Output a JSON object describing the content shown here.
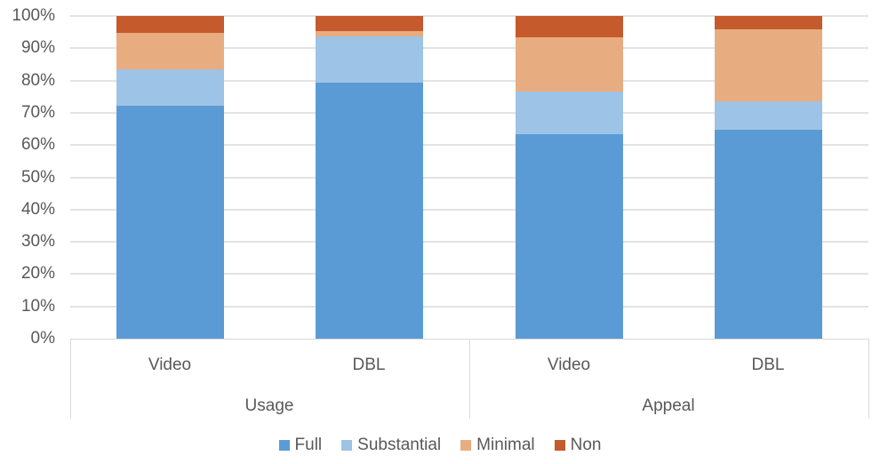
{
  "chart_data": {
    "type": "bar",
    "stacked": true,
    "percent_stacked": true,
    "title": "",
    "xlabel": "",
    "ylabel": "",
    "ylim": [
      0,
      100
    ],
    "y_ticks": [
      "0%",
      "10%",
      "20%",
      "30%",
      "40%",
      "50%",
      "60%",
      "70%",
      "80%",
      "90%",
      "100%"
    ],
    "grid": true,
    "legend_position": "bottom",
    "groups": [
      "Usage",
      "Appeal"
    ],
    "categories": [
      "Video",
      "DBL",
      "Video",
      "DBL"
    ],
    "category_groups": [
      "Usage",
      "Usage",
      "Appeal",
      "Appeal"
    ],
    "series": [
      {
        "name": "Full",
        "color": "#5b9bd5",
        "values": [
          72.3,
          79.3,
          63.4,
          64.8
        ]
      },
      {
        "name": "Substantial",
        "color": "#9dc3e6",
        "values": [
          11.2,
          14.4,
          13.3,
          8.8
        ]
      },
      {
        "name": "Minimal",
        "color": "#e7ad80",
        "values": [
          11.3,
          1.6,
          16.7,
          22.3
        ]
      },
      {
        "name": "Non",
        "color": "#c55a2c",
        "values": [
          5.2,
          4.7,
          6.6,
          4.1
        ]
      }
    ]
  }
}
